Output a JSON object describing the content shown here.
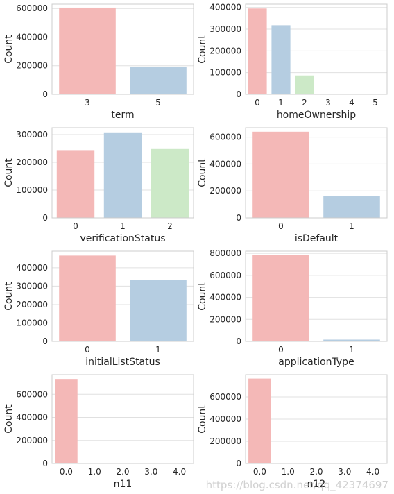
{
  "watermark": "https://blog.csdn.net/qq_42374697",
  "chart_data": [
    {
      "type": "bar",
      "categories": [
        "3",
        "5"
      ],
      "values": [
        606000,
        194000
      ],
      "xlabel": "term",
      "ylabel": "Count",
      "ylim": [
        0,
        630000
      ],
      "yticks": [
        0,
        200000,
        400000,
        600000
      ],
      "grid": true,
      "colors": [
        "#f4b8b7",
        "#b5cde1"
      ]
    },
    {
      "type": "bar",
      "categories": [
        "0",
        "1",
        "2",
        "3",
        "4",
        "5"
      ],
      "values": [
        395000,
        318000,
        87000,
        0,
        0,
        0
      ],
      "xlabel": "homeOwnership",
      "ylabel": "Count",
      "ylim": [
        0,
        415000
      ],
      "yticks": [
        0,
        100000,
        200000,
        300000,
        400000
      ],
      "grid": true,
      "colors": [
        "#f4b8b7",
        "#b5cde1",
        "#cce9c7",
        "#cfc5e0",
        "#fdd9ae",
        "#ffffcc"
      ]
    },
    {
      "type": "bar",
      "categories": [
        "0",
        "1",
        "2"
      ],
      "values": [
        244000,
        308000,
        248000
      ],
      "xlabel": "verificationStatus",
      "ylabel": "Count",
      "ylim": [
        0,
        325000
      ],
      "yticks": [
        0,
        100000,
        200000,
        300000
      ],
      "grid": true,
      "colors": [
        "#f4b8b7",
        "#b5cde1",
        "#cce9c7"
      ]
    },
    {
      "type": "bar",
      "categories": [
        "0",
        "1"
      ],
      "values": [
        640000,
        160000
      ],
      "xlabel": "isDefault",
      "ylabel": "Count",
      "ylim": [
        0,
        670000
      ],
      "yticks": [
        0,
        200000,
        400000,
        600000
      ],
      "grid": true,
      "colors": [
        "#f4b8b7",
        "#b5cde1"
      ]
    },
    {
      "type": "bar",
      "categories": [
        "0",
        "1"
      ],
      "values": [
        466000,
        334000
      ],
      "xlabel": "initialListStatus",
      "ylabel": "Count",
      "ylim": [
        0,
        490000
      ],
      "yticks": [
        0,
        100000,
        200000,
        300000,
        400000
      ],
      "grid": true,
      "colors": [
        "#f4b8b7",
        "#b5cde1"
      ]
    },
    {
      "type": "bar",
      "categories": [
        "0",
        "1"
      ],
      "values": [
        784000,
        16000
      ],
      "xlabel": "applicationType",
      "ylabel": "Count",
      "ylim": [
        0,
        820000
      ],
      "yticks": [
        0,
        200000,
        400000,
        600000,
        800000
      ],
      "grid": true,
      "colors": [
        "#f4b8b7",
        "#b5cde1"
      ]
    },
    {
      "type": "bar",
      "categories": [
        "0.0",
        "1.0",
        "2.0",
        "3.0",
        "4.0"
      ],
      "values": [
        733000,
        0,
        0,
        0,
        0
      ],
      "xlabel": "n11",
      "ylabel": "Count",
      "ylim": [
        0,
        770000
      ],
      "yticks": [
        0,
        200000,
        400000,
        600000
      ],
      "grid": true,
      "colors": [
        "#f4b8b7",
        "#b5cde1",
        "#cce9c7",
        "#cfc5e0",
        "#fdd9ae"
      ]
    },
    {
      "type": "bar",
      "categories": [
        "0.0",
        "1.0",
        "2.0",
        "3.0",
        "4.0"
      ],
      "values": [
        765000,
        0,
        0,
        0,
        0
      ],
      "xlabel": "n12",
      "ylabel": "Count",
      "ylim": [
        0,
        800000
      ],
      "yticks": [
        0,
        200000,
        400000,
        600000
      ],
      "grid": true,
      "colors": [
        "#f4b8b7",
        "#b5cde1",
        "#cce9c7",
        "#cfc5e0",
        "#fdd9ae"
      ]
    }
  ]
}
